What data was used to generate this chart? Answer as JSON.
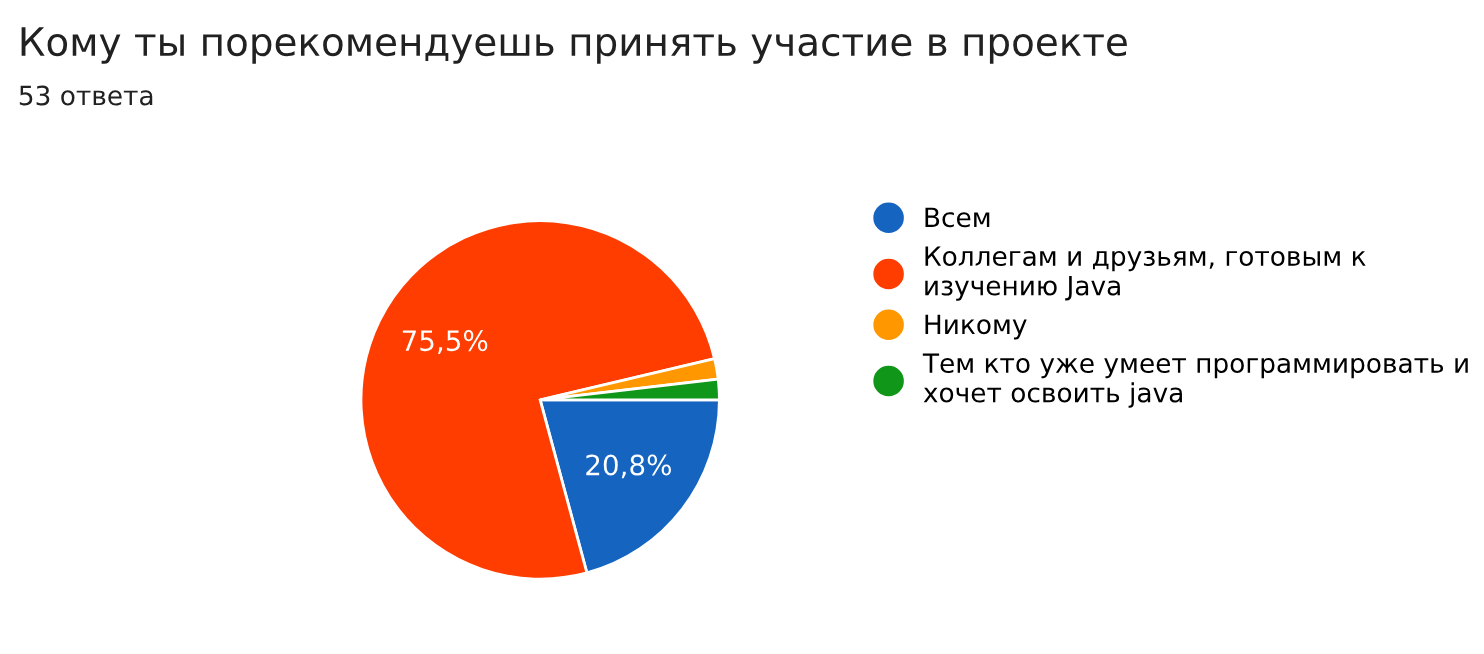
{
  "chart_data": {
    "type": "pie",
    "title": "Кому ты порекомендуешь принять участие в проекте",
    "subtitle": "53 ответа",
    "categories": [
      "Всем",
      "Коллегам и друзьям, готовым к\nизучению Java",
      "Никому",
      "Тем кто уже умеет программировать и\nхочет освоить java"
    ],
    "values": [
      20.8,
      75.5,
      1.85,
      1.85
    ],
    "colors": [
      "#1565c0",
      "#ff3d00",
      "#ff9800",
      "#109618"
    ],
    "value_labels": [
      "20,8%",
      "75,5%",
      null,
      null
    ],
    "legend": "right"
  }
}
